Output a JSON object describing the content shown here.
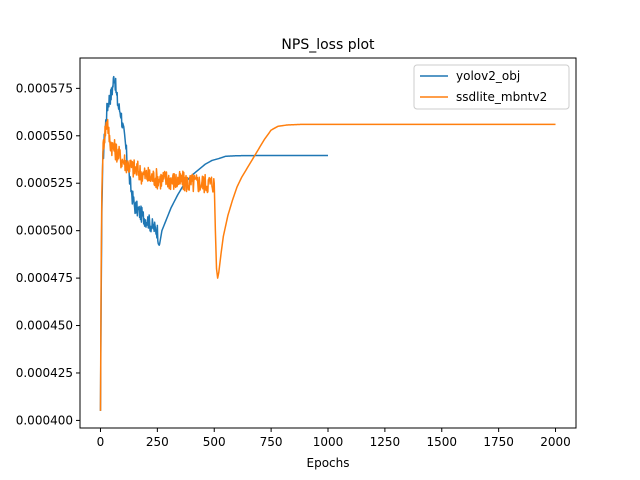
{
  "chart_data": {
    "type": "line",
    "title": "NPS_loss plot",
    "xlabel": "Epochs",
    "ylabel": "",
    "xlim": [
      -90,
      2090
    ],
    "ylim": [
      0.000396,
      0.000591
    ],
    "x_ticks": [
      0,
      250,
      500,
      750,
      1000,
      1250,
      1500,
      1750,
      2000
    ],
    "x_tick_labels": [
      "0",
      "250",
      "500",
      "750",
      "1000",
      "1250",
      "1500",
      "1750",
      "2000"
    ],
    "y_ticks": [
      0.0004,
      0.000425,
      0.00045,
      0.000475,
      0.0005,
      0.000525,
      0.00055,
      0.000575
    ],
    "y_tick_labels": [
      "0.000400",
      "0.000425",
      "0.000450",
      "0.000475",
      "0.000500",
      "0.000525",
      "0.000550",
      "0.000575"
    ],
    "grid": false,
    "legend_position": "top-right",
    "series": [
      {
        "name": "yolov2_obj",
        "color": "#1f77b4",
        "x": [
          0,
          3,
          6,
          10,
          15,
          20,
          25,
          30,
          35,
          40,
          45,
          50,
          55,
          60,
          65,
          70,
          75,
          80,
          90,
          100,
          110,
          120,
          130,
          140,
          150,
          170,
          190,
          210,
          230,
          250,
          260,
          270,
          290,
          310,
          340,
          370,
          400,
          430,
          460,
          490,
          520,
          550,
          600,
          700,
          800,
          900,
          1000
        ],
        "y": [
          0.000405,
          0.000465,
          0.00051,
          0.000535,
          0.000545,
          0.000552,
          0.00056,
          0.000565,
          0.000568,
          0.00057,
          0.000571,
          0.000573,
          0.000577,
          0.000582,
          0.000578,
          0.000572,
          0.000568,
          0.000565,
          0.000562,
          0.000553,
          0.000545,
          0.000535,
          0.000525,
          0.000518,
          0.000513,
          0.00051,
          0.000507,
          0.000505,
          0.000502,
          0.0005,
          0.000493,
          0.0005,
          0.000506,
          0.000512,
          0.000519,
          0.000525,
          0.000529,
          0.000532,
          0.000535,
          0.000537,
          0.000538,
          0.0005392,
          0.0005395,
          0.0005396,
          0.0005396,
          0.0005396,
          0.0005396
        ]
      },
      {
        "name": "ssdlite_mbntv2",
        "color": "#ff7f0e",
        "x": [
          0,
          3,
          6,
          10,
          15,
          20,
          25,
          30,
          35,
          40,
          50,
          60,
          70,
          80,
          90,
          100,
          120,
          140,
          160,
          180,
          200,
          220,
          240,
          260,
          280,
          300,
          330,
          360,
          390,
          420,
          450,
          480,
          500,
          505,
          510,
          515,
          520,
          530,
          540,
          560,
          580,
          600,
          620,
          640,
          660,
          680,
          700,
          720,
          750,
          780,
          820,
          880,
          1000,
          1200,
          1400,
          1600,
          1800,
          2000
        ],
        "y": [
          0.000405,
          0.00048,
          0.00052,
          0.00054,
          0.000548,
          0.000552,
          0.000555,
          0.00056,
          0.000552,
          0.000548,
          0.000545,
          0.000543,
          0.000542,
          0.00054,
          0.000538,
          0.000537,
          0.000535,
          0.000533,
          0.000532,
          0.00053,
          0.000529,
          0.000528,
          0.000528,
          0.000527,
          0.000527,
          0.000527,
          0.000526,
          0.000526,
          0.000525,
          0.000525,
          0.000525,
          0.000525,
          0.000525,
          0.0005,
          0.00048,
          0.000475,
          0.000478,
          0.000488,
          0.000497,
          0.000508,
          0.000516,
          0.000523,
          0.000528,
          0.000532,
          0.000536,
          0.00054,
          0.000544,
          0.000548,
          0.000553,
          0.000555,
          0.0005557,
          0.000556,
          0.000556,
          0.000556,
          0.000556,
          0.000556,
          0.000556,
          0.000556
        ]
      }
    ]
  }
}
